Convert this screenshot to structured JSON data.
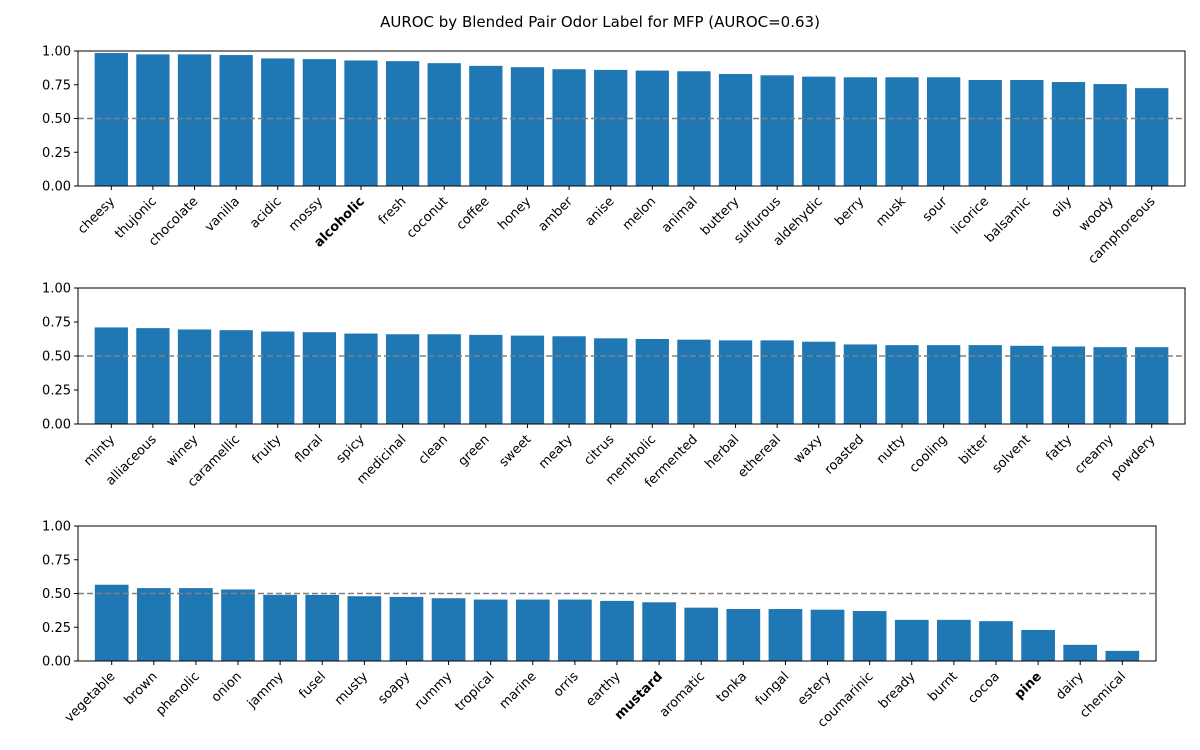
{
  "title": "AUROC by Blended Pair Odor Label for MFP (AUROC=0.63)",
  "colors": {
    "bar": "#1f77b4",
    "reference_line": "#808080",
    "axis": "#000000"
  },
  "chart_data": [
    {
      "type": "bar",
      "ylim": [
        0,
        1
      ],
      "yticks": [
        "0.00",
        "0.25",
        "0.50",
        "0.75",
        "1.00"
      ],
      "reference_line": 0.5,
      "categories": [
        "cheesy",
        "thujonic",
        "chocolate",
        "vanilla",
        "acidic",
        "mossy",
        "alcoholic",
        "fresh",
        "coconut",
        "coffee",
        "honey",
        "amber",
        "anise",
        "melon",
        "animal",
        "buttery",
        "sulfurous",
        "aldehydic",
        "berry",
        "musk",
        "sour",
        "licorice",
        "balsamic",
        "oily",
        "woody",
        "camphoreous"
      ],
      "values": [
        0.985,
        0.975,
        0.975,
        0.97,
        0.945,
        0.94,
        0.93,
        0.925,
        0.91,
        0.89,
        0.88,
        0.865,
        0.86,
        0.855,
        0.85,
        0.83,
        0.82,
        0.81,
        0.805,
        0.805,
        0.805,
        0.785,
        0.785,
        0.77,
        0.755,
        0.725
      ],
      "bold_labels": [
        "alcoholic"
      ]
    },
    {
      "type": "bar",
      "ylim": [
        0,
        1
      ],
      "yticks": [
        "0.00",
        "0.25",
        "0.50",
        "0.75",
        "1.00"
      ],
      "reference_line": 0.5,
      "categories": [
        "minty",
        "alliaceous",
        "winey",
        "caramellic",
        "fruity",
        "floral",
        "spicy",
        "medicinal",
        "clean",
        "green",
        "sweet",
        "meaty",
        "citrus",
        "mentholic",
        "fermented",
        "herbal",
        "ethereal",
        "waxy",
        "roasted",
        "nutty",
        "cooling",
        "bitter",
        "solvent",
        "fatty",
        "creamy",
        "powdery"
      ],
      "values": [
        0.71,
        0.705,
        0.695,
        0.69,
        0.68,
        0.675,
        0.665,
        0.66,
        0.66,
        0.655,
        0.65,
        0.645,
        0.63,
        0.625,
        0.62,
        0.615,
        0.615,
        0.605,
        0.585,
        0.58,
        0.58,
        0.58,
        0.575,
        0.57,
        0.565,
        0.565
      ],
      "bold_labels": []
    },
    {
      "type": "bar",
      "ylim": [
        0,
        1
      ],
      "yticks": [
        "0.00",
        "0.25",
        "0.50",
        "0.75",
        "1.00"
      ],
      "reference_line": 0.5,
      "categories": [
        "vegetable",
        "brown",
        "phenolic",
        "onion",
        "jammy",
        "fusel",
        "musty",
        "soapy",
        "rummy",
        "tropical",
        "marine",
        "orris",
        "earthy",
        "mustard",
        "aromatic",
        "tonka",
        "fungal",
        "estery",
        "coumarinic",
        "bready",
        "burnt",
        "cocoa",
        "pine",
        "dairy",
        "chemical"
      ],
      "values": [
        0.565,
        0.54,
        0.54,
        0.53,
        0.49,
        0.49,
        0.48,
        0.475,
        0.465,
        0.455,
        0.455,
        0.455,
        0.445,
        0.435,
        0.395,
        0.385,
        0.385,
        0.38,
        0.37,
        0.305,
        0.305,
        0.295,
        0.23,
        0.12,
        0.075
      ],
      "bold_labels": [
        "mustard",
        "pine"
      ]
    }
  ]
}
